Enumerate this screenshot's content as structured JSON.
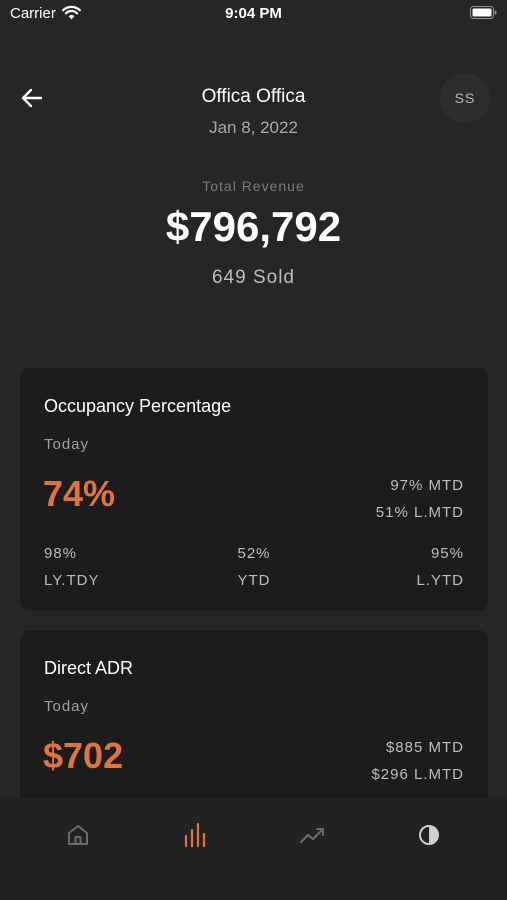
{
  "status_bar": {
    "carrier": "Carrier",
    "time": "9:04 PM"
  },
  "header": {
    "title": "Offica Offica",
    "date": "Jan 8, 2022",
    "avatar_initials": "SS"
  },
  "summary": {
    "label": "Total Revenue",
    "value": "$796,792",
    "sold": "649 Sold"
  },
  "cards": [
    {
      "title": "Occupancy Percentage",
      "period": "Today",
      "main_value": "74%",
      "right_lines": [
        "97% MTD",
        "51% L.MTD"
      ],
      "stats": [
        {
          "value": "98%",
          "label": "LY.TDY"
        },
        {
          "value": "52%",
          "label": "YTD"
        },
        {
          "value": "95%",
          "label": "L.YTD"
        }
      ]
    },
    {
      "title": "Direct ADR",
      "period": "Today",
      "main_value": "$702",
      "right_lines": [
        "$885 MTD",
        "$296 L.MTD"
      ]
    }
  ],
  "tab_bar": {
    "tabs": [
      {
        "icon": "home-icon",
        "active": false
      },
      {
        "icon": "bar-chart-icon",
        "active": true
      },
      {
        "icon": "trend-line-icon",
        "active": false
      },
      {
        "icon": "contrast-icon",
        "active": false
      }
    ]
  },
  "colors": {
    "background": "#262626",
    "card": "#1c1c1c",
    "accent": "#e0743c",
    "tab_bar": "#222222",
    "muted_icon": "#6c6c6c"
  }
}
